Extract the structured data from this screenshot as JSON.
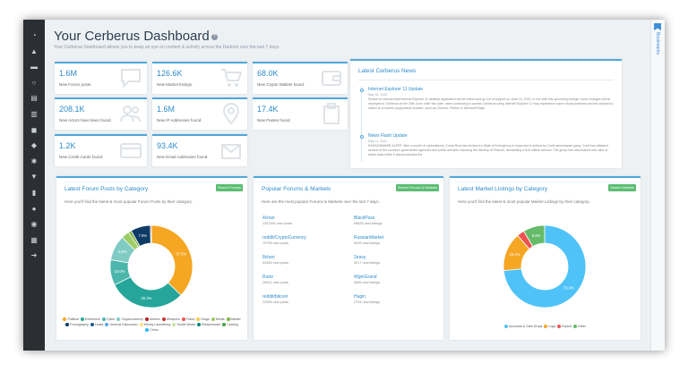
{
  "header": {
    "title": "Your Cerberus Dashboard",
    "help": "?",
    "subtitle": "Your Cerberus Dashboard allows you to keep an eye on content & activity across the Darknet over the last 7 days."
  },
  "rightbar": {
    "label": "Bookmarks"
  },
  "sidebar": {
    "icons": [
      "dashboard-icon",
      "bell-icon",
      "folder-icon",
      "search-icon",
      "book-icon",
      "chart-icon",
      "chat-icon",
      "cart-icon",
      "bug-icon",
      "hammer-icon",
      "file-icon",
      "comment-icon",
      "user-icon",
      "building-icon",
      "logout-icon"
    ]
  },
  "stats": [
    {
      "value": "1.6M",
      "label": "New Forum posts.",
      "icon": "chat-bubble-icon"
    },
    {
      "value": "126.6K",
      "label": "New Market listings.",
      "icon": "cart-icon"
    },
    {
      "value": "68.0K",
      "label": "New Crypto Wallets found.",
      "icon": "wallet-icon"
    },
    {
      "value": "208.1K",
      "label": "New Actors have been found.",
      "icon": "users-icon"
    },
    {
      "value": "1.6M",
      "label": "New IP Addresses found.",
      "icon": "map-pin-icon"
    },
    {
      "value": "17.4K",
      "label": "New Pastes found.",
      "icon": "paste-icon"
    },
    {
      "value": "1.2K",
      "label": "New Credit Cards found.",
      "icon": "credit-card-icon"
    },
    {
      "value": "93.4K",
      "label": "New Email Addresses found.",
      "icon": "envelope-icon"
    }
  ],
  "news": {
    "title": "Latest Cerberus News",
    "items": [
      {
        "title": "Internet Explorer 11 Update",
        "date": "May 31, 2022",
        "body": "Please be advised that Internet Explorer 11 desktop application will be retired and go out of support on June 15, 2022. In line with this upcoming change, some changes will be deployed to Cerberus on the 20th June. After this date, users continuing to access Cerberus using Internet Explorer 11 may experience some visual problems and are advised to switch to a modern (supported) browser, such as Chrome, Firefox or Microsoft Edge."
      },
      {
        "title": "News Flash Update",
        "date": "May 11, 2022",
        "body": "RANSOMWARE ALERT: After a month of cyberattacks, Costa Rica has declared a State of Emergency in response to actions by Conti ransomware gang. Conti has attacked several of the country's government agencies and public services including the Ministry of Finance, demanding a $10 million ransom. The group has also leaked over data of stolen data which it claims includes the"
      }
    ]
  },
  "forum_panel": {
    "title": "Latest Forum Posts by Category",
    "button": "Search Forums",
    "desc": "Here you'll find the latest & most popular Forum Posts by their category."
  },
  "popular_panel": {
    "title": "Popular Forums & Markets",
    "button": "Search Forums & Markets",
    "desc": "Here are the most popular Forums & Markets over the last 7 days.",
    "items": [
      {
        "name": "4chan",
        "count": "1337494 new posts."
      },
      {
        "name": "BlackPass",
        "count": "69826 new listings."
      },
      {
        "name": "reddit/CryptoCurrency",
        "count": "79795 new posts."
      },
      {
        "name": "RussianMarket",
        "count": "5929 new listings."
      },
      {
        "name": "8chan",
        "count": "34369 new posts."
      },
      {
        "name": "2easy",
        "count": "5017 new listings."
      },
      {
        "name": "Rutor",
        "count": "26631 new posts."
      },
      {
        "name": "WgmGrand",
        "count": "4645 new listings."
      },
      {
        "name": "reddit/bitcoin",
        "count": "22555 new posts."
      },
      {
        "name": "Hugin",
        "count": "2794 new listings."
      }
    ]
  },
  "market_panel": {
    "title": "Latest Market Listings by Category",
    "button": "Search Markets",
    "desc": "Here you'll find the latest & most popular Market Listings by their category."
  },
  "chart_data": [
    {
      "type": "pie",
      "donut": true,
      "title": "Latest Forum Posts by Category",
      "categories": [
        "Political",
        "Extremism",
        "Cyber",
        "Cryptocurrency",
        "Antisec",
        "Weapons",
        "Fraud",
        "Drugs",
        "Media",
        "Market",
        "Pornography",
        "Leaks",
        "General Discussion",
        "Money Laundering",
        "Social Media",
        "Ransomware",
        "Carding",
        "Crime"
      ],
      "colors": [
        "#f5a623",
        "#26a69a",
        "#4db6ac",
        "#80cbc4",
        "#b71c1c",
        "#d32f2f",
        "#ef5350",
        "#f7c948",
        "#9ccc65",
        "#7cb342",
        "#0d3b66",
        "#1e5b8c",
        "#5aa9e6",
        "#ffe082",
        "#c5e1a5",
        "#00897b",
        "#43a047",
        "#29b6f6"
      ],
      "slices": [
        {
          "category": "Political",
          "value": 37.3,
          "label": "37.3%"
        },
        {
          "category": "Extremism",
          "value": 30.3,
          "label": "30.3%"
        },
        {
          "category": "Cyber",
          "value": 10.0,
          "label": "10.0%"
        },
        {
          "category": "Cryptocurrency",
          "value": 9.9,
          "label": "9.9%"
        },
        {
          "category": "Media",
          "value": 3.1,
          "label": ""
        },
        {
          "category": "Market",
          "value": 1.2,
          "label": ""
        },
        {
          "category": "Pornography",
          "value": 7.8,
          "label": "7.8%"
        },
        {
          "category": "Weapons",
          "value": 0.4,
          "label": ""
        }
      ]
    },
    {
      "type": "pie",
      "donut": true,
      "title": "Latest Market Listings by Category",
      "categories": [
        "Accounts & Gain Drops",
        "Logs",
        "Exploit",
        "Other"
      ],
      "colors": [
        "#4fc3f7",
        "#f5a623",
        "#ef5350",
        "#66bb6a"
      ],
      "slices": [
        {
          "category": "Accounts & Gain Drops",
          "value": 73.4,
          "label": "73.4%"
        },
        {
          "category": "Logs",
          "value": 15.2,
          "label": "15.2%"
        },
        {
          "category": "Exploit",
          "value": 2.9,
          "label": ""
        },
        {
          "category": "Other",
          "value": 8.5,
          "label": "8.5%"
        }
      ]
    }
  ]
}
